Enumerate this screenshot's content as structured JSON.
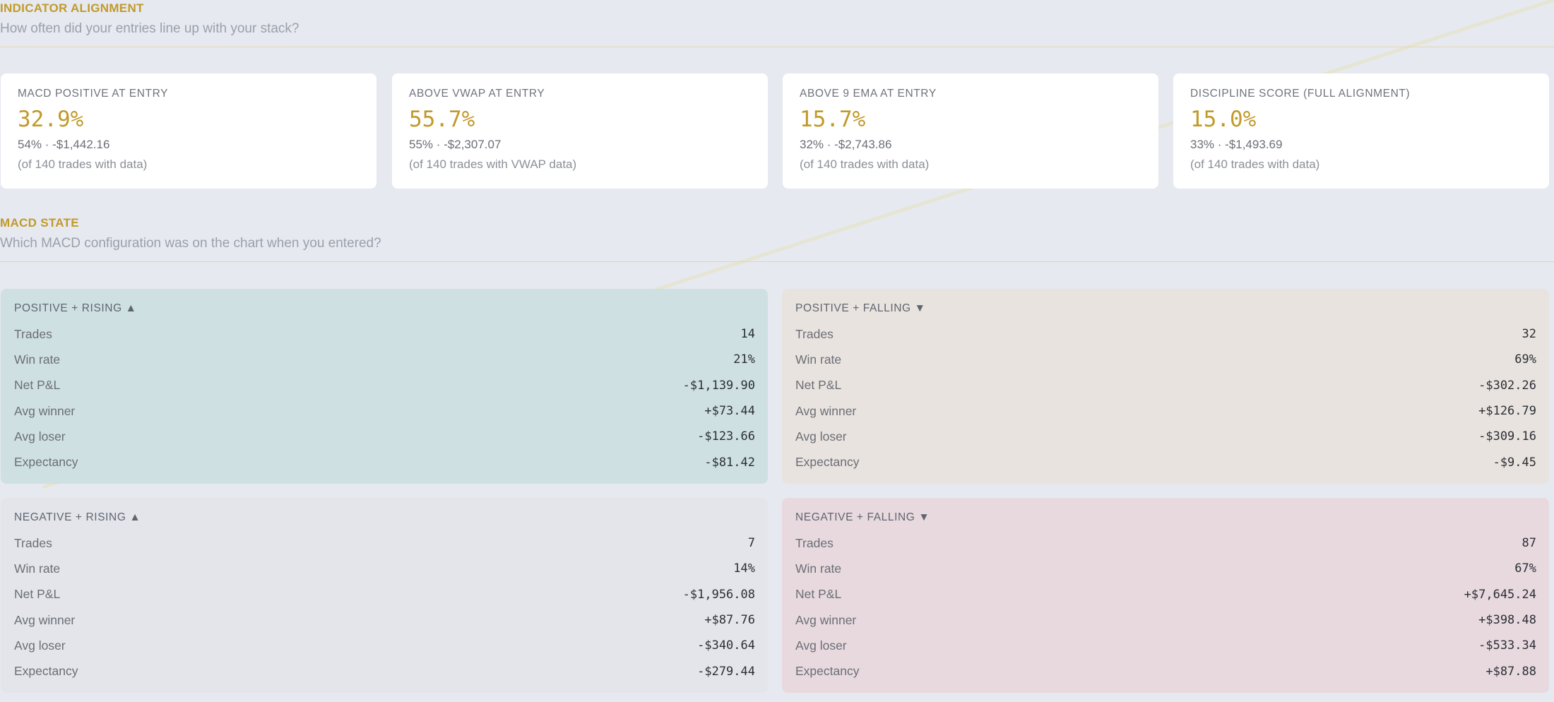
{
  "indicator_section": {
    "title": "INDICATOR ALIGNMENT",
    "subtitle": "How often did your entries line up with your stack?"
  },
  "stat_cards": [
    {
      "label": "MACD POSITIVE AT ENTRY",
      "value": "32.9%",
      "detail": "54% · -$1,442.16",
      "note": "(of 140 trades with data)"
    },
    {
      "label": "ABOVE VWAP AT ENTRY",
      "value": "55.7%",
      "detail": "55% · -$2,307.07",
      "note": "(of 140 trades with VWAP data)"
    },
    {
      "label": "ABOVE 9 EMA AT ENTRY",
      "value": "15.7%",
      "detail": "32% · -$2,743.86",
      "note": "(of 140 trades with data)"
    },
    {
      "label": "DISCIPLINE SCORE (FULL ALIGNMENT)",
      "value": "15.0%",
      "detail": "33% · -$1,493.69",
      "note": "(of 140 trades with data)"
    }
  ],
  "macd_section": {
    "title": "MACD STATE",
    "subtitle": "Which MACD configuration was on the chart when you entered?"
  },
  "row_labels": {
    "trades": "Trades",
    "win_rate": "Win rate",
    "net_pnl": "Net P&L",
    "avg_winner": "Avg winner",
    "avg_loser": "Avg loser",
    "expectancy": "Expectancy"
  },
  "macd_cards": [
    {
      "title": "POSITIVE + RISING ▲",
      "bg": "#cfe0e3",
      "trades": "14",
      "win_rate": "21%",
      "net_pnl": "-$1,139.90",
      "avg_winner": "+$73.44",
      "avg_loser": "-$123.66",
      "expectancy": "-$81.42"
    },
    {
      "title": "POSITIVE + FALLING ▼",
      "bg": "#e9e3df",
      "trades": "32",
      "win_rate": "69%",
      "net_pnl": "-$302.26",
      "avg_winner": "+$126.79",
      "avg_loser": "-$309.16",
      "expectancy": "-$9.45"
    },
    {
      "title": "NEGATIVE + RISING ▲",
      "bg": "#e3e5ea",
      "trades": "7",
      "win_rate": "14%",
      "net_pnl": "-$1,956.08",
      "avg_winner": "+$87.76",
      "avg_loser": "-$340.64",
      "expectancy": "-$279.44"
    },
    {
      "title": "NEGATIVE + FALLING ▼",
      "bg": "#e8d9de",
      "trades": "87",
      "win_rate": "67%",
      "net_pnl": "+$7,645.24",
      "avg_winner": "+$398.48",
      "avg_loser": "-$533.34",
      "expectancy": "+$87.88"
    }
  ],
  "colors": {
    "accent": "#c19a2a",
    "page_bg": "#e6e9f0",
    "card_bg": "#ffffff"
  }
}
